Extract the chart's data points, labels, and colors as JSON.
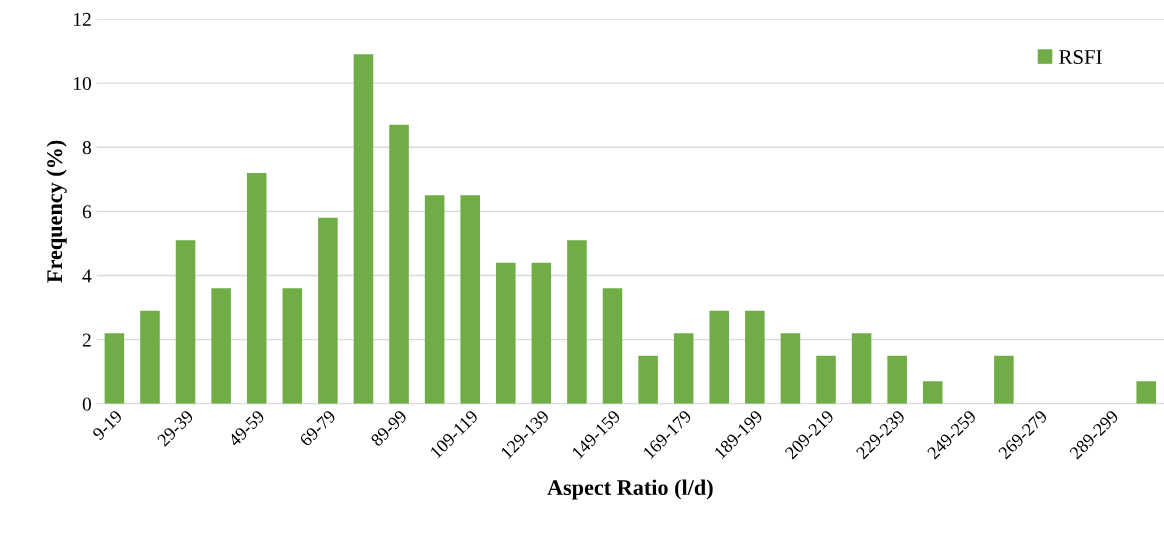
{
  "chart_data": {
    "type": "bar",
    "xlabel": "Aspect Ratio (l/d)",
    "ylabel": "Frequency (%)",
    "categories": [
      "9-19",
      null,
      "29-39",
      null,
      "49-59",
      null,
      "69-79",
      null,
      "89-99",
      null,
      "109-119",
      null,
      "129-139",
      null,
      "149-159",
      null,
      "169-179",
      null,
      "189-199",
      null,
      "209-219",
      null,
      "229-239",
      null,
      "249-259",
      null,
      "269-279",
      null,
      "289-299",
      null
    ],
    "series": [
      {
        "name": "RSFI",
        "color": "#70ad47",
        "values": [
          2.2,
          2.9,
          5.1,
          3.6,
          7.2,
          3.6,
          5.8,
          10.9,
          8.7,
          6.5,
          6.5,
          4.4,
          4.4,
          5.1,
          3.6,
          1.5,
          2.2,
          2.9,
          2.9,
          2.2,
          1.5,
          2.2,
          1.5,
          0.7,
          0,
          1.5,
          0,
          0,
          0,
          0.7
        ]
      }
    ],
    "ylim": [
      0,
      12
    ],
    "yticks": [
      0,
      2,
      4,
      6,
      8,
      10,
      12
    ],
    "grid": "y",
    "legend": "top right"
  }
}
